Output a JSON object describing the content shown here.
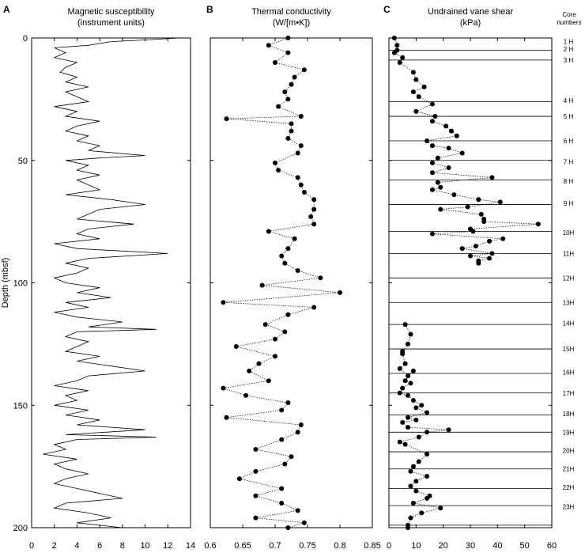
{
  "chart_data": [
    {
      "panel": "A",
      "type": "line",
      "title": "Magnetic susceptibility",
      "subtitle": "(instrument units)",
      "ylabel": "Depth (mbsf)",
      "xlim": [
        0,
        14
      ],
      "ylim": [
        0,
        200
      ],
      "x_ticks": [
        "0",
        "2",
        "4",
        "6",
        "8",
        "10",
        "12",
        "14"
      ],
      "y_ticks": [
        "0",
        "50",
        "100",
        "150",
        "200"
      ],
      "points": [
        [
          13,
          0
        ],
        [
          10,
          0.8
        ],
        [
          7,
          1.5
        ],
        [
          5,
          3
        ],
        [
          2,
          4
        ],
        [
          3,
          6
        ],
        [
          2,
          8
        ],
        [
          4,
          10
        ],
        [
          3,
          12
        ],
        [
          2.5,
          14
        ],
        [
          4,
          16
        ],
        [
          3,
          18
        ],
        [
          5,
          20
        ],
        [
          3,
          22
        ],
        [
          4,
          24
        ],
        [
          5,
          26
        ],
        [
          2,
          28
        ],
        [
          4,
          30
        ],
        [
          3,
          32
        ],
        [
          6,
          34
        ],
        [
          4,
          36
        ],
        [
          3,
          38
        ],
        [
          5,
          40
        ],
        [
          4,
          42
        ],
        [
          6,
          44
        ],
        [
          5,
          46
        ],
        [
          10,
          48
        ],
        [
          6,
          49
        ],
        [
          3,
          50
        ],
        [
          5,
          52
        ],
        [
          4,
          54
        ],
        [
          6,
          56
        ],
        [
          4,
          58
        ],
        [
          5,
          60
        ],
        [
          6,
          62
        ],
        [
          3,
          64
        ],
        [
          7,
          66
        ],
        [
          10,
          68
        ],
        [
          6,
          70
        ],
        [
          5,
          72
        ],
        [
          4,
          74
        ],
        [
          9,
          76
        ],
        [
          5,
          78
        ],
        [
          4,
          80
        ],
        [
          6,
          82
        ],
        [
          2,
          84
        ],
        [
          4,
          86
        ],
        [
          12,
          88
        ],
        [
          5,
          90
        ],
        [
          3,
          92
        ],
        [
          5,
          94
        ],
        [
          4,
          96
        ],
        [
          2,
          98
        ],
        [
          3,
          100
        ],
        [
          6,
          102
        ],
        [
          4,
          104
        ],
        [
          7,
          106
        ],
        [
          3,
          108
        ],
        [
          5,
          110
        ],
        [
          2,
          112
        ],
        [
          4,
          114
        ],
        [
          8,
          116
        ],
        [
          5,
          118
        ],
        [
          11,
          119
        ],
        [
          4,
          120
        ],
        [
          3,
          122
        ],
        [
          5,
          124
        ],
        [
          4,
          126
        ],
        [
          3,
          128
        ],
        [
          6,
          130
        ],
        [
          4,
          132
        ],
        [
          7,
          134
        ],
        [
          10,
          136
        ],
        [
          5,
          138
        ],
        [
          4,
          140
        ],
        [
          2,
          142
        ],
        [
          5,
          144
        ],
        [
          3,
          146
        ],
        [
          4,
          148
        ],
        [
          2,
          150
        ],
        [
          5,
          152
        ],
        [
          3,
          154
        ],
        [
          6,
          156
        ],
        [
          4,
          158
        ],
        [
          10,
          160
        ],
        [
          3,
          162
        ],
        [
          11,
          163
        ],
        [
          4,
          164
        ],
        [
          2,
          166
        ],
        [
          3,
          168
        ],
        [
          1,
          170
        ],
        [
          4,
          172
        ],
        [
          2,
          174
        ],
        [
          3,
          176
        ],
        [
          5,
          178
        ],
        [
          3,
          180
        ],
        [
          2,
          182
        ],
        [
          4,
          184
        ],
        [
          6,
          186
        ],
        [
          8,
          188
        ],
        [
          3,
          190
        ],
        [
          2,
          192
        ],
        [
          5,
          194
        ],
        [
          7,
          196
        ],
        [
          4,
          198
        ],
        [
          8,
          200
        ]
      ]
    },
    {
      "panel": "B",
      "type": "scatter",
      "title": "Thermal conductivity",
      "subtitle": "(W/[m•K])",
      "xlim": [
        0.6,
        0.85
      ],
      "ylim": [
        0,
        200
      ],
      "x_ticks": [
        "0.6",
        "0.65",
        "0.7",
        "0.75",
        "0.8",
        "0.85"
      ],
      "points": [
        [
          0.72,
          0
        ],
        [
          0.69,
          3
        ],
        [
          0.72,
          6
        ],
        [
          0.7,
          10
        ],
        [
          0.745,
          13
        ],
        [
          0.73,
          16
        ],
        [
          0.725,
          19
        ],
        [
          0.715,
          22
        ],
        [
          0.72,
          25
        ],
        [
          0.705,
          28
        ],
        [
          0.74,
          32
        ],
        [
          0.625,
          33
        ],
        [
          0.725,
          35
        ],
        [
          0.725,
          38
        ],
        [
          0.72,
          41
        ],
        [
          0.74,
          44
        ],
        [
          0.735,
          47
        ],
        [
          0.7,
          51
        ],
        [
          0.705,
          54
        ],
        [
          0.735,
          57
        ],
        [
          0.74,
          60
        ],
        [
          0.745,
          63
        ],
        [
          0.76,
          66
        ],
        [
          0.76,
          70
        ],
        [
          0.755,
          73
        ],
        [
          0.76,
          76
        ],
        [
          0.69,
          79
        ],
        [
          0.73,
          82
        ],
        [
          0.72,
          86
        ],
        [
          0.71,
          89
        ],
        [
          0.715,
          92
        ],
        [
          0.735,
          95
        ],
        [
          0.77,
          98
        ],
        [
          0.68,
          101
        ],
        [
          0.8,
          104
        ],
        [
          0.62,
          108
        ],
        [
          0.76,
          110
        ],
        [
          0.72,
          113
        ],
        [
          0.685,
          117
        ],
        [
          0.715,
          120
        ],
        [
          0.7,
          123
        ],
        [
          0.64,
          126
        ],
        [
          0.7,
          130
        ],
        [
          0.675,
          133
        ],
        [
          0.66,
          136
        ],
        [
          0.69,
          140
        ],
        [
          0.62,
          143
        ],
        [
          0.655,
          146
        ],
        [
          0.72,
          149
        ],
        [
          0.71,
          152
        ],
        [
          0.625,
          155
        ],
        [
          0.74,
          158
        ],
        [
          0.735,
          161
        ],
        [
          0.71,
          164
        ],
        [
          0.67,
          168
        ],
        [
          0.725,
          171
        ],
        [
          0.715,
          174
        ],
        [
          0.67,
          177
        ],
        [
          0.645,
          180
        ],
        [
          0.71,
          184
        ],
        [
          0.67,
          187
        ],
        [
          0.71,
          190
        ],
        [
          0.735,
          193
        ],
        [
          0.67,
          196
        ],
        [
          0.745,
          198
        ],
        [
          0.72,
          200
        ]
      ]
    },
    {
      "panel": "C",
      "type": "scatter",
      "title": "Undrained vane shear",
      "subtitle": "(kPa)",
      "xlim": [
        0,
        60
      ],
      "ylim": [
        0,
        200
      ],
      "x_ticks": [
        "0",
        "10",
        "20",
        "30",
        "40",
        "50",
        "60"
      ],
      "points_segments": [
        [
          [
            2,
            0
          ],
          [
            3,
            3
          ],
          [
            3,
            5
          ],
          [
            2,
            6
          ],
          [
            5,
            8
          ],
          [
            4,
            10
          ],
          [
            9,
            14
          ],
          [
            10,
            17
          ],
          [
            13,
            20
          ],
          [
            9,
            22
          ],
          [
            11,
            24
          ],
          [
            16,
            27
          ],
          [
            10,
            30
          ],
          [
            17,
            32
          ],
          [
            16,
            34
          ],
          [
            21,
            36
          ],
          [
            23,
            38
          ],
          [
            25,
            40
          ],
          [
            14,
            42
          ],
          [
            16,
            44
          ],
          [
            22,
            45
          ],
          [
            27,
            47
          ],
          [
            18,
            49
          ],
          [
            16,
            51
          ],
          [
            22,
            53
          ],
          [
            16,
            55
          ],
          [
            38,
            57
          ],
          [
            18,
            59
          ],
          [
            19,
            61
          ],
          [
            16,
            62
          ],
          [
            24,
            64
          ],
          [
            33,
            66
          ],
          [
            41,
            67
          ],
          [
            29,
            69
          ],
          [
            19,
            70
          ],
          [
            34,
            72
          ],
          [
            35,
            74
          ],
          [
            35,
            75
          ],
          [
            55,
            76
          ],
          [
            30,
            78
          ],
          [
            31,
            79
          ],
          [
            16,
            80
          ],
          [
            42,
            82
          ],
          [
            37,
            83
          ],
          [
            32,
            85
          ],
          [
            27,
            86
          ],
          [
            38,
            88
          ],
          [
            30,
            89
          ],
          [
            37,
            90
          ],
          [
            33,
            91
          ],
          [
            33,
            92
          ]
        ],
        [
          [
            6,
            117
          ],
          [
            8,
            121
          ],
          [
            7,
            125
          ],
          [
            5,
            128
          ],
          [
            5,
            129
          ],
          [
            6,
            133
          ],
          [
            4,
            135
          ],
          [
            7,
            138
          ],
          [
            9,
            136
          ],
          [
            6,
            140
          ],
          [
            8,
            141
          ],
          [
            5,
            143
          ],
          [
            4,
            145
          ],
          [
            7,
            146
          ],
          [
            9,
            148
          ],
          [
            12,
            150
          ],
          [
            10,
            151
          ],
          [
            14,
            153
          ],
          [
            7,
            155
          ],
          [
            10,
            156
          ],
          [
            5,
            157
          ],
          [
            7,
            159
          ],
          [
            22,
            160
          ],
          [
            14,
            161
          ],
          [
            11,
            163
          ],
          [
            4,
            165
          ],
          [
            6,
            166
          ],
          [
            14,
            170
          ],
          [
            11,
            173
          ],
          [
            9,
            175
          ],
          [
            8,
            177
          ],
          [
            14,
            179
          ],
          [
            10,
            181
          ],
          [
            8,
            183
          ],
          [
            10,
            185
          ],
          [
            15,
            187
          ],
          [
            14,
            188
          ],
          [
            9,
            190
          ],
          [
            19,
            192
          ],
          [
            12,
            194
          ],
          [
            8,
            196
          ],
          [
            7,
            199
          ],
          [
            7,
            200
          ]
        ]
      ],
      "core_boundaries": [
        5,
        9,
        26,
        32,
        42,
        50,
        58,
        68,
        79,
        88,
        98,
        108,
        117,
        127,
        137,
        145,
        154,
        161,
        169,
        176,
        184,
        191,
        199
      ],
      "core_header": "Core numbers",
      "core_labels": [
        [
          "1 H",
          1.5
        ],
        [
          "2 H",
          4.5
        ],
        [
          "3 H",
          9
        ],
        [
          "4 H",
          25.5
        ],
        [
          "5 H",
          32
        ],
        [
          "6 H",
          42
        ],
        [
          "7 H",
          50.5
        ],
        [
          "8 H",
          58.5
        ],
        [
          "9 H",
          67.5
        ],
        [
          "10H",
          79.5
        ],
        [
          "11H",
          88
        ],
        [
          "12H",
          98
        ],
        [
          "13H",
          108
        ],
        [
          "14H",
          116.5
        ],
        [
          "15H",
          127
        ],
        [
          "16H",
          136.5
        ],
        [
          "17H",
          145
        ],
        [
          "18H",
          153.5
        ],
        [
          "19H",
          161
        ],
        [
          "20H",
          168.5
        ],
        [
          "21H",
          176
        ],
        [
          "22H",
          183.5
        ],
        [
          "23H",
          191.5
        ]
      ]
    }
  ],
  "panels": {
    "a_letter": "A",
    "b_letter": "B",
    "c_letter": "C"
  }
}
